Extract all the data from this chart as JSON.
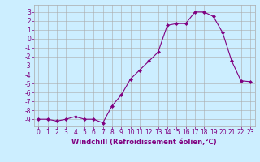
{
  "x": [
    0,
    1,
    2,
    3,
    4,
    5,
    6,
    7,
    8,
    9,
    10,
    11,
    12,
    13,
    14,
    15,
    16,
    17,
    18,
    19,
    20,
    21,
    22,
    23
  ],
  "y": [
    -9,
    -9,
    -9.2,
    -9,
    -8.7,
    -9,
    -9,
    -9.4,
    -7.5,
    -6.3,
    -4.5,
    -3.5,
    -2.5,
    -1.5,
    1.5,
    1.7,
    1.7,
    3.0,
    3.0,
    2.5,
    0.7,
    -2.5,
    -4.7,
    -4.8
  ],
  "xlabel": "Windchill (Refroidissement éolien,°C)",
  "line_color": "#800080",
  "marker_color": "#800080",
  "bg_color": "#cceeff",
  "grid_color": "#aaaaaa",
  "title": "",
  "xlim": [
    -0.5,
    23.5
  ],
  "ylim": [
    -9.8,
    3.8
  ],
  "yticks": [
    3,
    2,
    1,
    0,
    -1,
    -2,
    -3,
    -4,
    -5,
    -6,
    -7,
    -8,
    -9
  ],
  "xticks": [
    0,
    1,
    2,
    3,
    4,
    5,
    6,
    7,
    8,
    9,
    10,
    11,
    12,
    13,
    14,
    15,
    16,
    17,
    18,
    19,
    20,
    21,
    22,
    23
  ],
  "tick_color": "#800080",
  "xlabel_color": "#800080",
  "font_size": 5.5
}
